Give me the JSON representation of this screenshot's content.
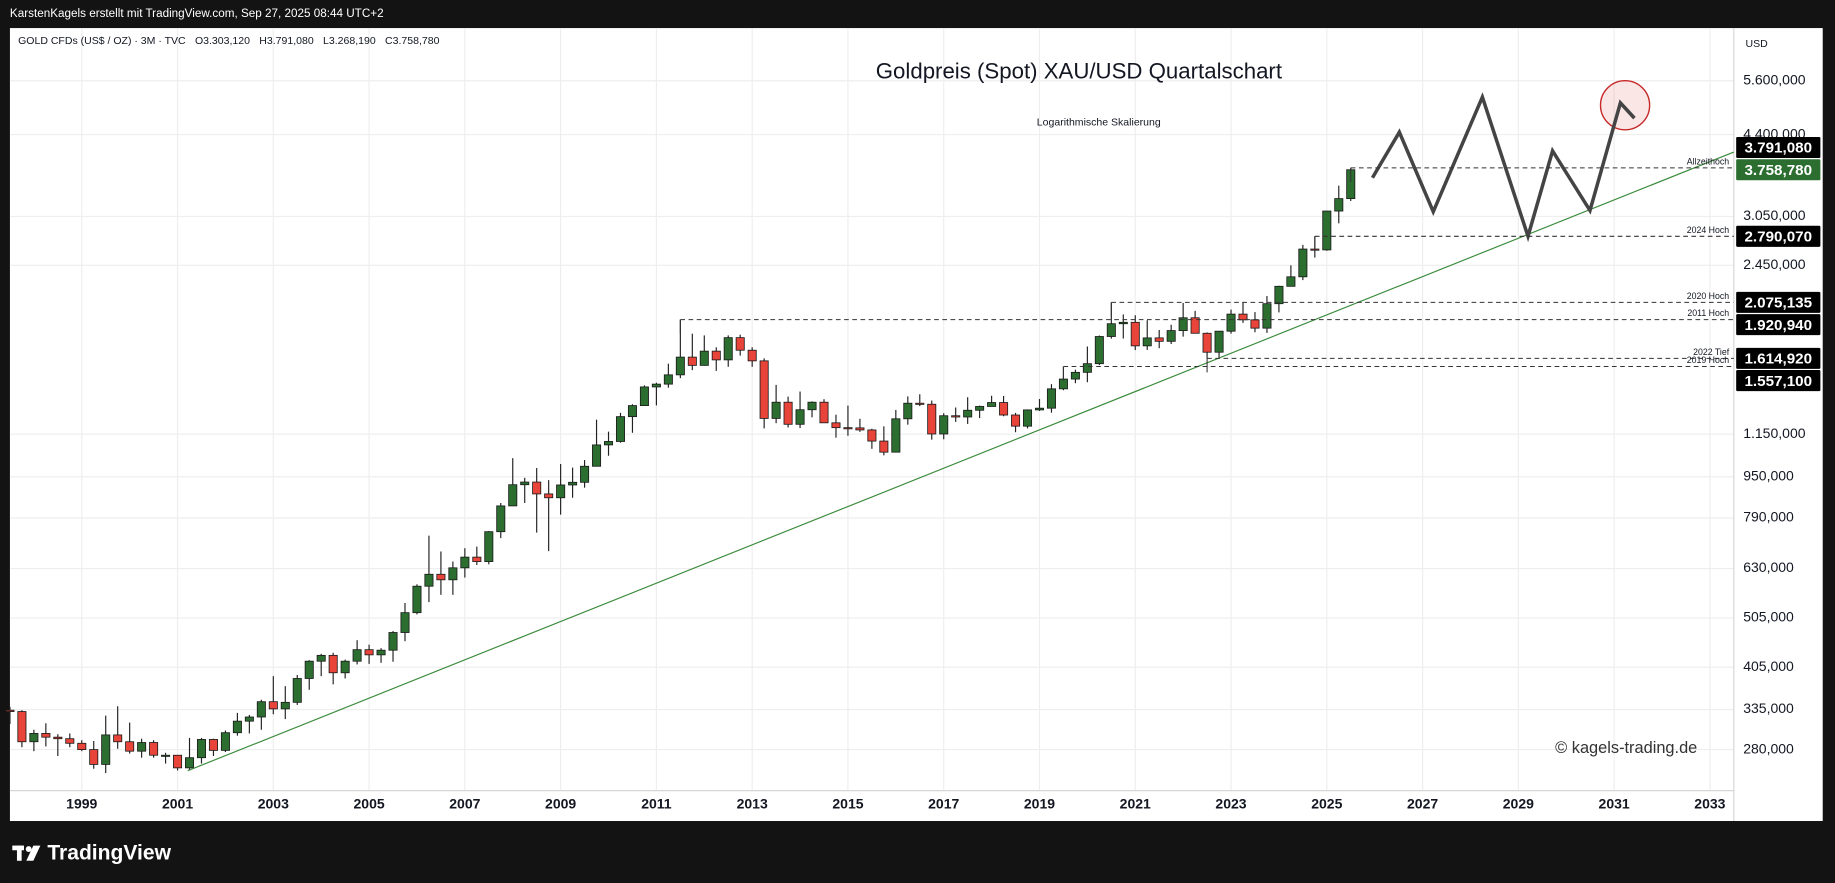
{
  "top_bar": "KarstenKagels erstellt mit TradingView.com, Sep 27, 2025 08:44 UTC+2",
  "footer": {
    "logo": "TradingView"
  },
  "chart_data": {
    "type": "candlestick",
    "title": "Goldpreis (Spot) XAU/USD Quartalschart",
    "subtitle": "Logarithmische Skalierung",
    "symbol": "GOLD CFDs (US$ / OZ) · 3M · TVC",
    "ohlc_legend": [
      {
        "key": "O",
        "label": "3.303,120"
      },
      {
        "key": "H",
        "label": "3.791,080"
      },
      {
        "key": "L",
        "label": "3.268,190"
      },
      {
        "key": "C",
        "label": "3.758,780"
      }
    ],
    "currency": "USD",
    "watermark": "© kagels-trading.de",
    "up_color": "#2b6e30",
    "down_color": "#e8443a",
    "log_scale": true,
    "grid": true,
    "xlim": [
      1997.5,
      2033.5
    ],
    "xticks": [
      1999,
      2001,
      2003,
      2005,
      2007,
      2009,
      2011,
      2013,
      2015,
      2017,
      2019,
      2021,
      2023,
      2025,
      2027,
      2029,
      2031,
      2033
    ],
    "ylim": [
      233,
      7090
    ],
    "yticks": [
      {
        "value": 280,
        "label": "280,000"
      },
      {
        "value": 335,
        "label": "335,000"
      },
      {
        "value": 405,
        "label": "405,000"
      },
      {
        "value": 505,
        "label": "505,000"
      },
      {
        "value": 630,
        "label": "630,000"
      },
      {
        "value": 790,
        "label": "790,000"
      },
      {
        "value": 950,
        "label": "950,000"
      },
      {
        "value": 1150,
        "label": "1.150,000"
      },
      {
        "value": 2450,
        "label": "2.450,000"
      },
      {
        "value": 3050,
        "label": "3.050,000"
      },
      {
        "value": 4400,
        "label": "4.400,000"
      },
      {
        "value": 5600,
        "label": "5.600,000"
      }
    ],
    "x": [
      1997.5,
      1997.75,
      1998,
      1998.25,
      1998.5,
      1998.75,
      1999,
      1999.25,
      1999.5,
      1999.75,
      2000,
      2000.25,
      2000.5,
      2000.75,
      2001,
      2001.25,
      2001.5,
      2001.75,
      2002,
      2002.25,
      2002.5,
      2002.75,
      2003,
      2003.25,
      2003.5,
      2003.75,
      2004,
      2004.25,
      2004.5,
      2004.75,
      2005,
      2005.25,
      2005.5,
      2005.75,
      2006,
      2006.25,
      2006.5,
      2006.75,
      2007,
      2007.25,
      2007.5,
      2007.75,
      2008,
      2008.25,
      2008.5,
      2008.75,
      2009,
      2009.25,
      2009.5,
      2009.75,
      2010,
      2010.25,
      2010.5,
      2010.75,
      2011,
      2011.25,
      2011.5,
      2011.75,
      2012,
      2012.25,
      2012.5,
      2012.75,
      2013,
      2013.25,
      2013.5,
      2013.75,
      2014,
      2014.25,
      2014.5,
      2014.75,
      2015,
      2015.25,
      2015.5,
      2015.75,
      2016,
      2016.25,
      2016.5,
      2016.75,
      2017,
      2017.25,
      2017.5,
      2017.75,
      2018,
      2018.25,
      2018.5,
      2018.75,
      2019,
      2019.25,
      2019.5,
      2019.75,
      2020,
      2020.25,
      2020.5,
      2020.75,
      2021,
      2021.25,
      2021.5,
      2021.75,
      2022,
      2022.25,
      2022.5,
      2022.75,
      2023,
      2023.25,
      2023.5,
      2023.75,
      2024,
      2024.25,
      2024.5,
      2024.75,
      2025,
      2025.25,
      2025.5
    ],
    "open": [
      334,
      332,
      290,
      301,
      296,
      294,
      288,
      280,
      262,
      299,
      290,
      278,
      289,
      273,
      273,
      258,
      270,
      293,
      279,
      302,
      318,
      324,
      347,
      336,
      346,
      385,
      416,
      427,
      395,
      416,
      438,
      428,
      437,
      473,
      517,
      582,
      614,
      599,
      632,
      663,
      650,
      743,
      834,
      917,
      928,
      880,
      865,
      916,
      927,
      996,
      1096,
      1113,
      1244,
      1307,
      1421,
      1439,
      1500,
      1624,
      1565,
      1668,
      1604,
      1772,
      1675,
      1597,
      1234,
      1327,
      1202,
      1283,
      1327,
      1210,
      1184,
      1183,
      1172,
      1115,
      1061,
      1232,
      1321,
      1315,
      1151,
      1249,
      1242,
      1280,
      1302,
      1325,
      1253,
      1192,
      1282,
      1292,
      1409,
      1472,
      1517,
      1577,
      1781,
      1886,
      1898,
      1708,
      1770,
      1743,
      1829,
      1937,
      1807,
      1660,
      1824,
      1969,
      1919,
      1849,
      2063,
      2230,
      2327,
      2635,
      2625,
      3124,
      3303.12
    ],
    "high": [
      339,
      334,
      306,
      315,
      300,
      301,
      292,
      291,
      326,
      340,
      316,
      294,
      292,
      276,
      273,
      295,
      295,
      294,
      305,
      330,
      327,
      350,
      389,
      372,
      391,
      418,
      430,
      432,
      419,
      457,
      448,
      441,
      476,
      540,
      587,
      730,
      680,
      650,
      690,
      695,
      745,
      845,
      1033,
      946,
      988,
      936,
      1006,
      990,
      1024,
      1227,
      1163,
      1265,
      1315,
      1431,
      1448,
      1577,
      1920.94,
      1804,
      1790,
      1697,
      1790,
      1796,
      1697,
      1615,
      1434,
      1361,
      1392,
      1332,
      1345,
      1255,
      1307,
      1232,
      1178,
      1191,
      1282,
      1362,
      1375,
      1337,
      1263,
      1296,
      1357,
      1307,
      1366,
      1365,
      1265,
      1285,
      1346,
      1439,
      1557.1,
      1535,
      1703,
      1789,
      2075.135,
      1966,
      1959,
      1916,
      1834,
      1877,
      2070,
      1998,
      1814,
      1825,
      2009,
      2079,
      1987,
      2135,
      2236,
      2450,
      2685,
      2790.07,
      3128,
      3500,
      3791.08
    ],
    "low": [
      314,
      283,
      278,
      284,
      272,
      283,
      278,
      257,
      252,
      281,
      275,
      270,
      270,
      263,
      255,
      255,
      263,
      272,
      277,
      298,
      301,
      306,
      328,
      321,
      342,
      366,
      389,
      375,
      385,
      410,
      411,
      413,
      415,
      455,
      513,
      542,
      560,
      560,
      605,
      640,
      642,
      722,
      834,
      845,
      740,
      681,
      802,
      865,
      905,
      996,
      1044,
      1107,
      1157,
      1307,
      1308,
      1416,
      1478,
      1532,
      1563,
      1527,
      1555,
      1635,
      1555,
      1180,
      1208,
      1185,
      1182,
      1240,
      1209,
      1132,
      1142,
      1162,
      1077,
      1046,
      1060,
      1200,
      1304,
      1122,
      1124,
      1215,
      1204,
      1236,
      1302,
      1246,
      1160,
      1180,
      1276,
      1266,
      1400,
      1445,
      1451,
      1567,
      1764,
      1765,
      1676,
      1677,
      1690,
      1722,
      1780,
      1805,
      1614.92,
      1617,
      1804,
      1893,
      1815,
      1810,
      1984,
      2228,
      2293,
      2536,
      2615,
      2957,
      3268.19
    ],
    "close": [
      332,
      290,
      301,
      296,
      294,
      288,
      280,
      262,
      299,
      290,
      278,
      289,
      273,
      273,
      258,
      270,
      293,
      279,
      302,
      318,
      324,
      347,
      336,
      346,
      385,
      416,
      427,
      395,
      416,
      438,
      428,
      437,
      473,
      517,
      582,
      614,
      599,
      632,
      663,
      650,
      743,
      834,
      917,
      928,
      880,
      865,
      916,
      927,
      996,
      1096,
      1113,
      1244,
      1307,
      1421,
      1439,
      1500,
      1624,
      1565,
      1668,
      1604,
      1772,
      1675,
      1597,
      1234,
      1327,
      1202,
      1283,
      1327,
      1210,
      1184,
      1183,
      1172,
      1115,
      1061,
      1232,
      1321,
      1315,
      1151,
      1249,
      1242,
      1280,
      1302,
      1325,
      1253,
      1192,
      1282,
      1292,
      1409,
      1472,
      1517,
      1577,
      1781,
      1886,
      1898,
      1708,
      1770,
      1743,
      1829,
      1937,
      1807,
      1660,
      1824,
      1969,
      1919,
      1849,
      2063,
      2230,
      2327,
      2635,
      2625,
      3124,
      3303.12,
      3758.78
    ],
    "levels": [
      {
        "name": "Allzeithoch",
        "value": 3791.08,
        "label": "3.791,080",
        "start": 2025.5
      },
      {
        "name": "2024 Hoch",
        "value": 2790.07,
        "label": "2.790,070",
        "start": 2024.75
      },
      {
        "name": "2020 Hoch",
        "value": 2075.135,
        "label": "2.075,135",
        "start": 2020.5
      },
      {
        "name": "2011 Hoch",
        "value": 1920.94,
        "label": "1.920,940",
        "start": 2011.5
      },
      {
        "name": "2022 Tief",
        "value": 1614.92,
        "label": "1.614,920",
        "start": 2022.5
      },
      {
        "name": "2019 Hoch",
        "value": 1557.1,
        "label": "1.557,100",
        "start": 2019.5
      }
    ],
    "last_price": {
      "value": 3758.78,
      "label": "3.758,780",
      "color": "#2b6e30"
    }
  }
}
